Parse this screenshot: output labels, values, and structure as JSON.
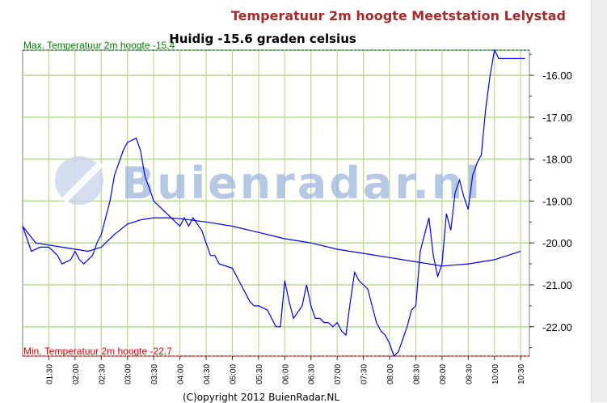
{
  "chart_data": {
    "type": "line",
    "title": "Temperatuur 2m hoogte Meetstation Lelystad",
    "subtitle": "Huidig -15.6 graden celsius",
    "title_color": "#a52a2a",
    "watermark": "Buienradar.nl",
    "copyright": "(C)opyright 2012 BuienRadar.NL",
    "ylim": [
      -22.7,
      -15.4
    ],
    "y_ticks": [
      "-16.00",
      "-17.00",
      "-18.00",
      "-19.00",
      "-20.00",
      "-21.00",
      "-22.00"
    ],
    "y_tick_values": [
      -16,
      -17,
      -18,
      -19,
      -20,
      -21,
      -22
    ],
    "x_ticks": [
      "01:30",
      "02:00",
      "02:30",
      "03:00",
      "03:30",
      "04:00",
      "04:30",
      "05:00",
      "05:30",
      "06:00",
      "06:30",
      "07:00",
      "07:30",
      "08:00",
      "08:30",
      "09:00",
      "09:30",
      "10:00",
      "10:30"
    ],
    "grid": true,
    "grid_color": "#b9d990",
    "line_color": "#0000ee",
    "reference_lines": [
      {
        "label": "Max. Temperatuur 2m hoogte -15.4",
        "value": -15.4,
        "color": "#008000"
      },
      {
        "label": "Min. Temperatuur 2m hoogte -22.7",
        "value": -22.7,
        "color": "#dd0000"
      }
    ],
    "series": [
      {
        "x": [
          "01:00",
          "01:05",
          "01:10",
          "01:20",
          "01:30",
          "01:40",
          "01:45",
          "01:55",
          "02:00",
          "02:05",
          "02:10",
          "02:20",
          "02:25",
          "02:30",
          "02:40",
          "02:45",
          "02:55",
          "03:00",
          "03:10",
          "03:15",
          "03:20",
          "03:25",
          "03:30",
          "03:40",
          "03:45",
          "03:55",
          "04:00",
          "04:05",
          "04:10",
          "04:15",
          "04:25",
          "04:30",
          "04:35",
          "04:40",
          "04:45",
          "05:00",
          "05:10",
          "05:15",
          "05:20",
          "05:25",
          "05:30",
          "05:40",
          "05:45",
          "05:50",
          "05:55",
          "06:00",
          "06:05",
          "06:10",
          "06:20",
          "06:25",
          "06:30",
          "06:35",
          "06:40",
          "06:45",
          "06:50",
          "06:55",
          "07:00",
          "07:05",
          "07:10",
          "07:15",
          "07:20",
          "07:25",
          "07:30",
          "07:35",
          "07:40",
          "07:45",
          "07:50",
          "07:55",
          "08:00",
          "08:05",
          "08:10",
          "08:20",
          "08:25",
          "08:30",
          "08:35",
          "08:40",
          "08:45",
          "08:50",
          "08:55",
          "09:00",
          "09:05",
          "09:10",
          "09:15",
          "09:20",
          "09:25",
          "09:30",
          "09:35",
          "09:40",
          "09:45",
          "09:50",
          "09:55",
          "10:00",
          "10:05",
          "10:10",
          "10:15",
          "10:20",
          "10:25",
          "10:30",
          "10:35"
        ],
        "values": [
          -19.6,
          -19.9,
          -20.2,
          -20.1,
          -20.1,
          -20.3,
          -20.5,
          -20.4,
          -20.2,
          -20.4,
          -20.5,
          -20.3,
          -20.0,
          -19.8,
          -19.0,
          -18.4,
          -17.8,
          -17.6,
          -17.5,
          -17.8,
          -18.4,
          -18.7,
          -19.0,
          -19.2,
          -19.3,
          -19.5,
          -19.6,
          -19.4,
          -19.6,
          -19.4,
          -19.7,
          -20.0,
          -20.3,
          -20.3,
          -20.5,
          -20.6,
          -21.0,
          -21.2,
          -21.4,
          -21.5,
          -21.5,
          -21.6,
          -21.8,
          -22.0,
          -22.0,
          -20.9,
          -21.4,
          -21.8,
          -21.5,
          -21.0,
          -21.5,
          -21.8,
          -21.8,
          -21.9,
          -21.9,
          -22.0,
          -21.9,
          -22.1,
          -22.2,
          -21.4,
          -20.7,
          -20.9,
          -21.0,
          -21.1,
          -21.5,
          -21.9,
          -22.1,
          -22.2,
          -22.4,
          -22.7,
          -22.6,
          -22.0,
          -21.6,
          -21.5,
          -20.2,
          -19.8,
          -19.4,
          -20.3,
          -20.8,
          -20.5,
          -19.3,
          -19.7,
          -18.8,
          -18.5,
          -18.9,
          -19.2,
          -18.4,
          -18.1,
          -17.9,
          -16.8,
          -16.0,
          -15.4,
          -15.6,
          -15.6,
          -15.6,
          -15.6,
          -15.6,
          -15.6,
          -15.6
        ]
      },
      {
        "x": [
          "01:00",
          "01:15",
          "01:30",
          "01:45",
          "02:00",
          "02:15",
          "02:30",
          "02:45",
          "03:00",
          "03:15",
          "03:30",
          "03:45",
          "04:00",
          "04:30",
          "05:00",
          "05:30",
          "06:00",
          "06:30",
          "07:00",
          "07:30",
          "08:00",
          "08:30",
          "09:00",
          "09:30",
          "10:00",
          "10:30"
        ],
        "values": [
          -19.6,
          -20.0,
          -20.05,
          -20.1,
          -20.15,
          -20.2,
          -20.1,
          -19.8,
          -19.55,
          -19.45,
          -19.4,
          -19.4,
          -19.42,
          -19.5,
          -19.6,
          -19.75,
          -19.9,
          -20.0,
          -20.15,
          -20.25,
          -20.35,
          -20.45,
          -20.55,
          -20.5,
          -20.4,
          -20.2
        ]
      }
    ]
  }
}
